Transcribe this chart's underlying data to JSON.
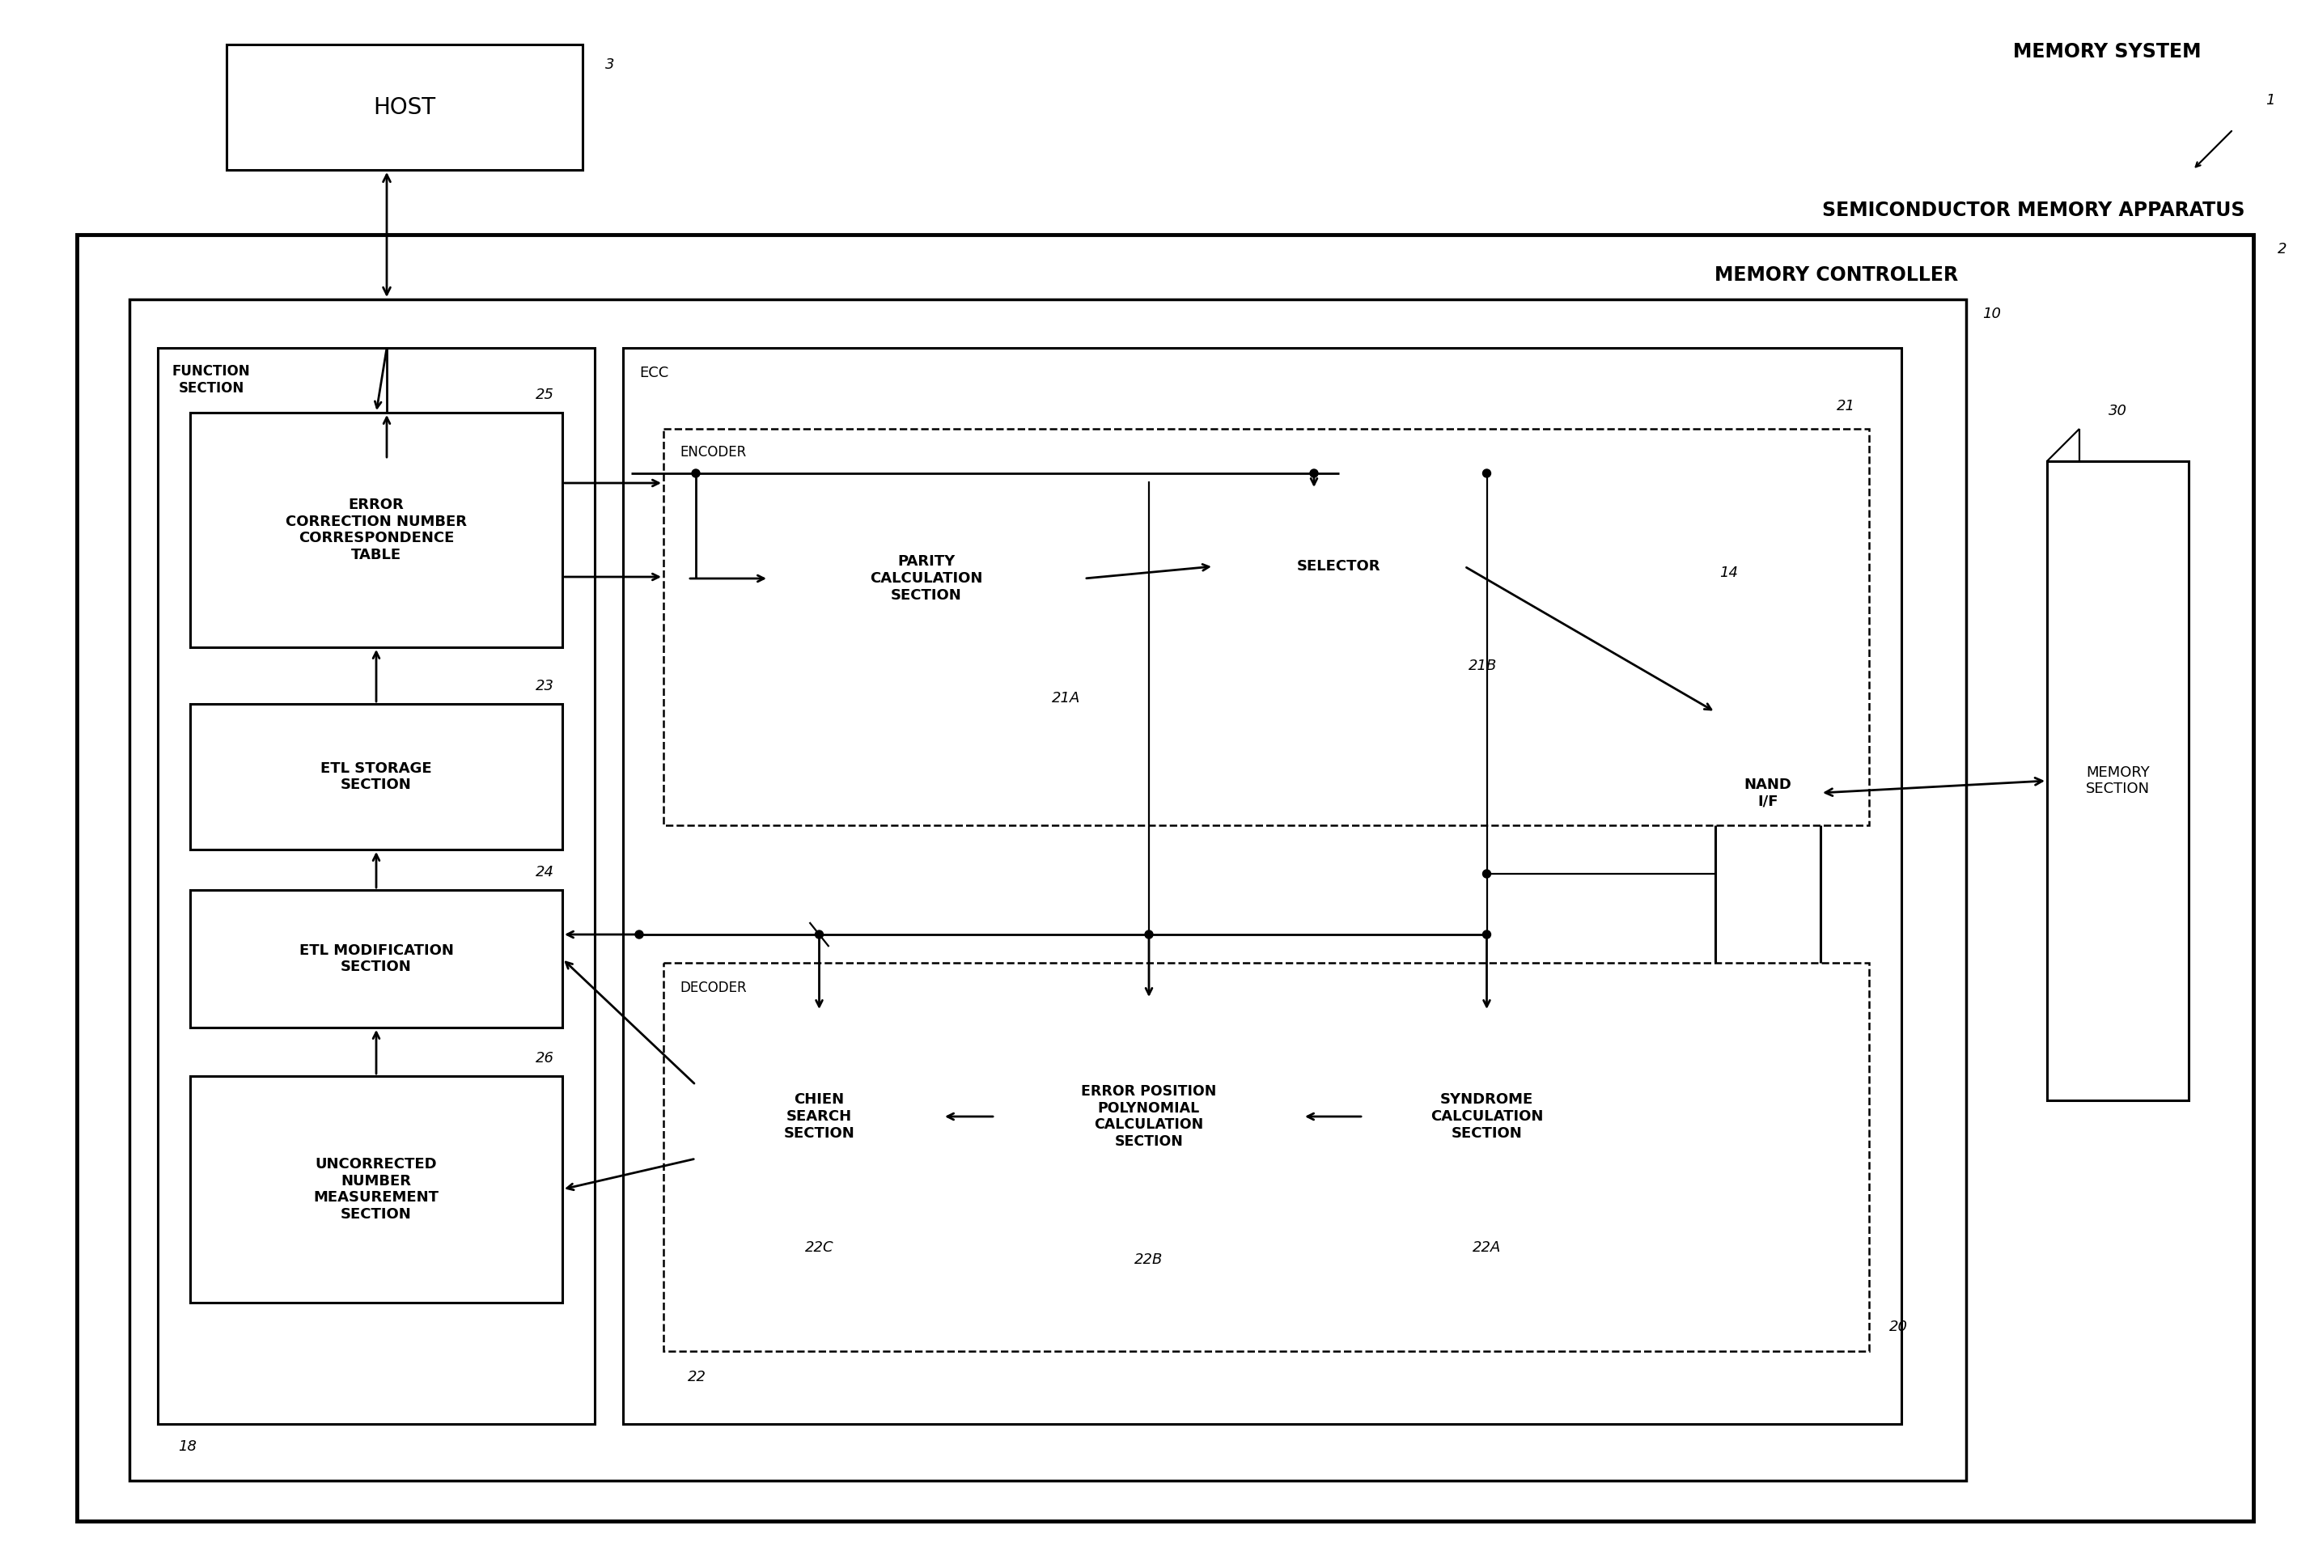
{
  "bg_color": "#ffffff",
  "title_memory_system": "MEMORY SYSTEM",
  "ref_1": "1",
  "title_sma": "SEMICONDUCTOR MEMORY APPARATUS",
  "ref_2": "2",
  "title_mc": "MEMORY CONTROLLER",
  "ref_10": "10",
  "title_ecc": "ECC",
  "title_encoder": "ENCODER",
  "ref_21": "21",
  "title_decoder": "DECODER",
  "ref_22": "22",
  "title_fs": "FUNCTION\nSECTION",
  "ref_18": "18",
  "host_label": "HOST",
  "ref_3": "3",
  "ecnt_label": "ERROR\nCORRECTION NUMBER\nCORRESPONDENCE\nTABLE",
  "ref_25": "25",
  "etls_label": "ETL STORAGE\nSECTION",
  "ref_23": "23",
  "etlm_label": "ETL MODIFICATION\nSECTION",
  "ref_24": "24",
  "uncorr_label": "UNCORRECTED\nNUMBER\nMEASUREMENT\nSECTION",
  "ref_26": "26",
  "parity_label": "PARITY\nCALCULATION\nSECTION",
  "ref_21A": "21A",
  "selector_label": "SELECTOR",
  "ref_21B": "21B",
  "chien_label": "CHIEN\nSEARCH\nSECTION",
  "ref_22C": "22C",
  "erpp_label": "ERROR POSITION\nPOLYNOMIAL\nCALCULATION\nSECTION",
  "ref_22B": "22B",
  "syndrome_label": "SYNDROME\nCALCULATION\nSECTION",
  "ref_22A": "22A",
  "nand_label": "NAND\nI/F",
  "ref_14": "14",
  "memory_section_label": "MEMORY\nSECTION",
  "ref_30": "30",
  "ref_20": "20"
}
